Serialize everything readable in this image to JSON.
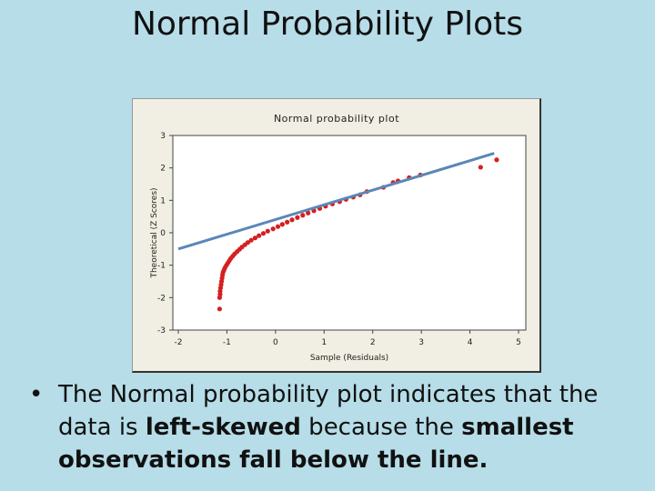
{
  "slide": {
    "title": "Normal Probability Plots"
  },
  "bullet": {
    "marker": "•",
    "part1": "The Normal probability plot indicates that the data is ",
    "bold1": "left-skewed",
    "part2": " because the ",
    "bold2": "smallest observations fall below the line."
  },
  "chart_data": {
    "type": "scatter",
    "title": "Normal probability plot",
    "xlabel": "Sample (Residuals)",
    "ylabel": "Theoretical (Z Scores)",
    "xlim": [
      -2,
      5
    ],
    "ylim": [
      -3,
      3
    ],
    "xticks": [
      -2,
      -1,
      0,
      1,
      2,
      3,
      4,
      5
    ],
    "yticks": [
      3,
      2,
      1,
      0,
      -1,
      -2,
      -3
    ],
    "grid": false,
    "point_color": "#d42020",
    "line_color": "#5b87b8",
    "fit_line": {
      "x": [
        -2.0,
        4.5
      ],
      "y": [
        -0.5,
        2.45
      ]
    },
    "points": {
      "x": [
        -1.15,
        -1.15,
        -1.14,
        -1.14,
        -1.13,
        -1.12,
        -1.11,
        -1.1,
        -1.09,
        -1.08,
        -1.06,
        -1.04,
        -1.01,
        -0.98,
        -0.95,
        -0.92,
        -0.88,
        -0.84,
        -0.79,
        -0.74,
        -0.69,
        -0.63,
        -0.57,
        -0.5,
        -0.42,
        -0.34,
        -0.25,
        -0.16,
        -0.05,
        0.05,
        0.14,
        0.24,
        0.34,
        0.45,
        0.56,
        0.67,
        0.79,
        0.91,
        1.03,
        1.17,
        1.32,
        1.45,
        1.6,
        1.74,
        1.88,
        2.22,
        2.42,
        2.52,
        2.75,
        2.98,
        4.22,
        4.55
      ],
      "y": [
        -2.35,
        -2.0,
        -1.9,
        -1.8,
        -1.7,
        -1.6,
        -1.5,
        -1.4,
        -1.3,
        -1.22,
        -1.15,
        -1.08,
        -1.0,
        -0.93,
        -0.86,
        -0.79,
        -0.72,
        -0.65,
        -0.58,
        -0.51,
        -0.44,
        -0.37,
        -0.3,
        -0.23,
        -0.16,
        -0.09,
        -0.02,
        0.05,
        0.12,
        0.19,
        0.26,
        0.33,
        0.4,
        0.47,
        0.54,
        0.61,
        0.68,
        0.75,
        0.82,
        0.89,
        0.96,
        1.03,
        1.1,
        1.17,
        1.27,
        1.4,
        1.55,
        1.6,
        1.7,
        1.78,
        2.02,
        2.25
      ]
    }
  }
}
